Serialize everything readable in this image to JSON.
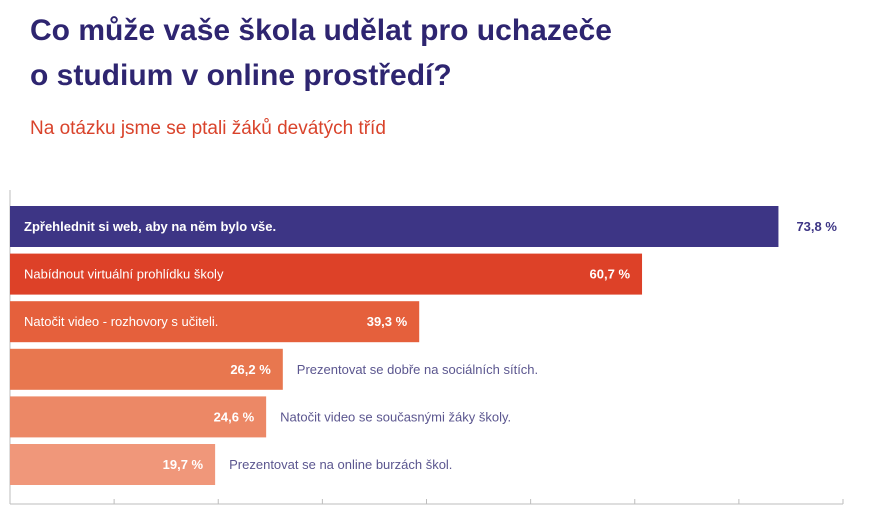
{
  "header": {
    "title_line1": "Co může vaše škola udělat pro uchazeče",
    "title_line2": "o studium v online prostředí?",
    "subtitle": "Na otázku jsme se ptali žáků devátých tříd"
  },
  "colors": {
    "title": "#2e2570",
    "subtitle": "#d9432b",
    "bar_primary": "#3d3585",
    "axis": "#bdbdbd",
    "outside_label": "#5b568f"
  },
  "chart_data": {
    "type": "bar",
    "orientation": "horizontal",
    "categories": [
      "Zpřehlednit si web, aby na něm bylo vše.",
      "Nabídnout virtuální prohlídku školy",
      "Natočit video - rozhovory s učiteli.",
      "Prezentovat se dobře na sociálních sítích.",
      "Natočit video se současnými žáky školy.",
      "Prezentovat se na online burzách škol."
    ],
    "values": [
      73.8,
      60.7,
      39.3,
      26.2,
      24.6,
      19.7
    ],
    "value_labels": [
      "73,8 %",
      "60,7 %",
      "39,3 %",
      "26,2 %",
      "24,6 %",
      "19,7 %"
    ],
    "bar_colors": [
      "#3d3585",
      "#dd4128",
      "#e5603c",
      "#e8774f",
      "#ec8866",
      "#f0977a"
    ],
    "category_label_position": [
      "inside",
      "inside",
      "inside",
      "outside",
      "outside",
      "outside"
    ],
    "value_label_position": [
      "outside",
      "inside",
      "inside",
      "inside",
      "inside",
      "inside"
    ],
    "xlim": [
      0,
      80
    ],
    "grid": false,
    "legend": "none"
  }
}
